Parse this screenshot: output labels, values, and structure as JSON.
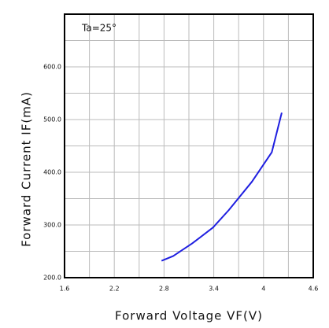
{
  "chart_data": {
    "type": "line",
    "annotation": "Ta=25°",
    "xlabel": "Forward Voltage VF(V)",
    "ylabel": "Forward Current IF(mA)",
    "x": [
      2.77,
      2.91,
      3.14,
      3.39,
      3.58,
      3.86,
      4.1,
      4.22
    ],
    "series": [
      {
        "color": "#1f1fe0",
        "values": [
          232,
          241,
          265,
          295,
          328,
          382,
          438,
          513
        ]
      }
    ],
    "xlim": [
      1.6,
      4.6
    ],
    "ylim": [
      200,
      700
    ],
    "xticks": [
      1.6,
      2.2,
      2.8,
      3.4,
      4.0,
      4.6
    ],
    "yticks": [
      {
        "value": 200,
        "label": "200.0"
      },
      {
        "value": 300,
        "label": "300.0"
      },
      {
        "value": 400,
        "label": "400.0"
      },
      {
        "value": 500,
        "label": "500.0"
      },
      {
        "value": 600,
        "label": "600.0"
      }
    ],
    "minor_xticks": [
      1.9,
      2.5,
      3.1,
      3.7,
      4.3
    ],
    "minor_yticks": [
      250,
      350,
      450,
      550,
      650
    ],
    "grid": true
  }
}
